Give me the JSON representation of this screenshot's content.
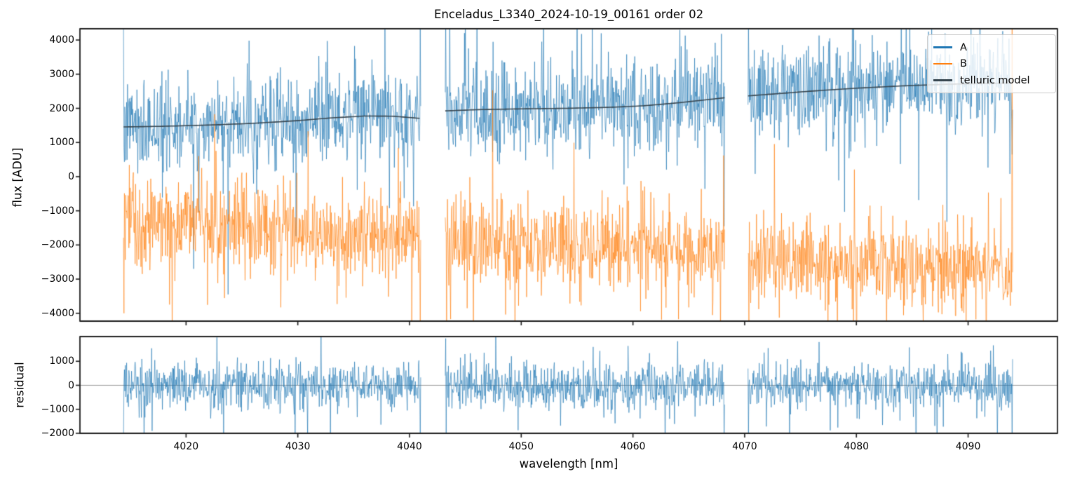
{
  "chart_data": {
    "type": "line",
    "title": "Enceladus_L3340_2024-10-19_00161  order 02",
    "xlabel": "wavelength [nm]",
    "xlim": [
      4010.5,
      4098.0
    ],
    "xticks": [
      4020,
      4030,
      4040,
      4050,
      4060,
      4070,
      4080,
      4090
    ],
    "segments_nm": [
      [
        4014.4,
        4041.0
      ],
      [
        4043.2,
        4068.2
      ],
      [
        4070.3,
        4094.0
      ]
    ],
    "sample_step_nm": 0.04,
    "noise_seed": 7,
    "axis_color": "#1a1a1a",
    "text_color": "#000000",
    "panels": [
      {
        "name": "flux",
        "ylabel": "flux [ADU]",
        "ylim": [
          -4230,
          4330
        ],
        "yticks": [
          -4000,
          -3000,
          -2000,
          -1000,
          0,
          1000,
          2000,
          3000,
          4000
        ],
        "series": [
          {
            "name": "A",
            "color": "#1f77b4",
            "type": "noisy",
            "mean": "telluric",
            "sigma": 640,
            "tail_p1": 0.09,
            "tail_m1": 2.0,
            "tail_p2": 0.015,
            "tail_m2": 3.1
          },
          {
            "name": "B",
            "color": "#ff7f0e",
            "type": "noisy",
            "mean": "linear",
            "mean_start": -1350,
            "mean_slope_per_nm": -17.5,
            "sigma": 640,
            "tail_p1": 0.09,
            "tail_m1": 2.0,
            "tail_p2": 0.015,
            "tail_m2": 3.1
          },
          {
            "name": "telluric model",
            "color": "#36454f",
            "type": "smooth",
            "points": [
              [
                4014.4,
                1455
              ],
              [
                4018,
                1475
              ],
              [
                4022,
                1510
              ],
              [
                4026,
                1560
              ],
              [
                4030,
                1640
              ],
              [
                4033,
                1720
              ],
              [
                4036,
                1775
              ],
              [
                4038.5,
                1770
              ],
              [
                4041,
                1705
              ],
              [
                4043.2,
                1925
              ],
              [
                4046,
                1960
              ],
              [
                4050,
                1985
              ],
              [
                4054,
                2000
              ],
              [
                4058,
                2030
              ],
              [
                4061,
                2075
              ],
              [
                4064,
                2160
              ],
              [
                4066,
                2230
              ],
              [
                4068.2,
                2310
              ],
              [
                4070.3,
                2365
              ],
              [
                4073,
                2430
              ],
              [
                4076,
                2505
              ],
              [
                4080,
                2590
              ],
              [
                4084,
                2655
              ],
              [
                4088,
                2705
              ],
              [
                4091,
                2725
              ],
              [
                4094,
                2740
              ]
            ]
          }
        ]
      },
      {
        "name": "residual",
        "ylabel": "residual",
        "ylim": [
          -2000,
          2030
        ],
        "yticks": [
          -2000,
          -1000,
          0,
          1000
        ],
        "zero_line_color": "#909090",
        "series": [
          {
            "name": "residual",
            "color": "#1f77b4",
            "type": "noisy",
            "mean": "zero",
            "sigma": 460,
            "tail_p1": 0.07,
            "tail_m1": 2.2,
            "tail_p2": 0.01,
            "tail_m2": 3.6
          }
        ]
      }
    ],
    "legend": {
      "position": "upper right",
      "entries": [
        {
          "label": "A",
          "color": "#1f77b4"
        },
        {
          "label": "B",
          "color": "#ff7f0e"
        },
        {
          "label": "telluric model",
          "color": "#36454f"
        }
      ]
    },
    "edge_spikes": [
      {
        "panel": 0,
        "series": 0,
        "x": 4014.42,
        "v": 4500
      },
      {
        "panel": 0,
        "series": 0,
        "x": 4040.96,
        "v": 4500
      },
      {
        "panel": 0,
        "series": 0,
        "x": 4043.24,
        "v": 4500
      },
      {
        "panel": 0,
        "series": 0,
        "x": 4068.16,
        "v": -1450
      },
      {
        "panel": 0,
        "series": 0,
        "x": 4070.34,
        "v": 4500
      },
      {
        "panel": 0,
        "series": 0,
        "x": 4093.1,
        "v": 4260
      },
      {
        "panel": 0,
        "series": 0,
        "x": 4093.96,
        "v": 650
      },
      {
        "panel": 0,
        "series": 1,
        "x": 4014.46,
        "v": -4000
      },
      {
        "panel": 0,
        "series": 1,
        "x": 4040.2,
        "v": -4500
      },
      {
        "panel": 0,
        "series": 1,
        "x": 4040.98,
        "v": -4500
      },
      {
        "panel": 0,
        "series": 1,
        "x": 4043.3,
        "v": -4500
      },
      {
        "panel": 0,
        "series": 1,
        "x": 4068.1,
        "v": 620
      },
      {
        "panel": 0,
        "series": 1,
        "x": 4070.4,
        "v": -4500
      },
      {
        "panel": 0,
        "series": 1,
        "x": 4093.96,
        "v": 4500
      },
      {
        "panel": 1,
        "series": 0,
        "x": 4014.42,
        "v": -2300
      },
      {
        "panel": 1,
        "series": 0,
        "x": 4040.96,
        "v": -2300
      },
      {
        "panel": 1,
        "series": 0,
        "x": 4043.24,
        "v": 1950
      },
      {
        "panel": 1,
        "series": 0,
        "x": 4043.28,
        "v": -2300
      },
      {
        "panel": 1,
        "series": 0,
        "x": 4068.16,
        "v": -2200
      },
      {
        "panel": 1,
        "series": 0,
        "x": 4070.34,
        "v": -2250
      },
      {
        "panel": 1,
        "series": 0,
        "x": 4093.96,
        "v": -2300
      }
    ]
  }
}
